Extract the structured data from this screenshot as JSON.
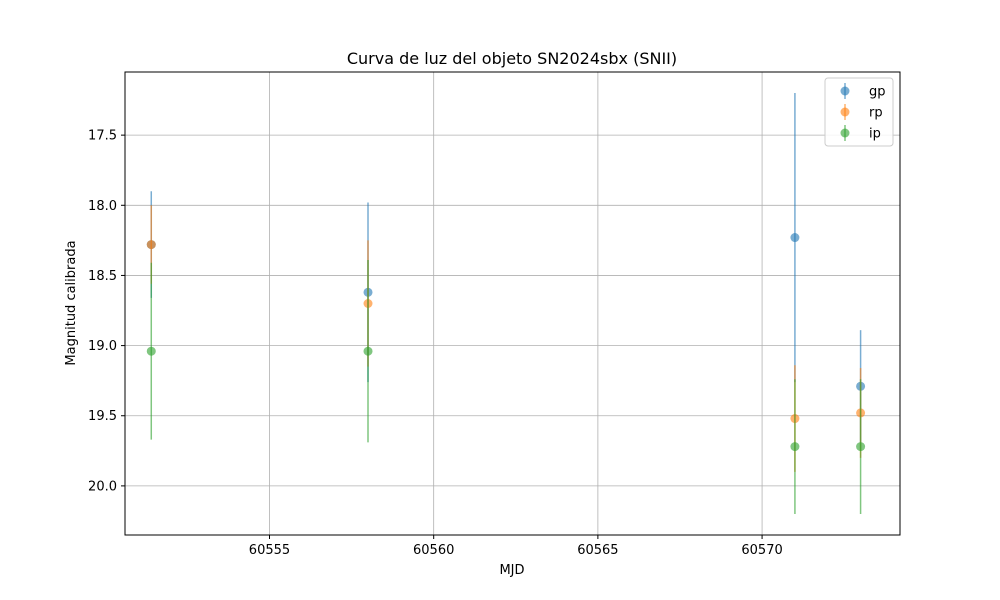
{
  "chart_data": {
    "type": "scatter",
    "title": "Curva de luz del objeto SN2024sbx (SNII)",
    "xlabel": "MJD",
    "ylabel": "Magnitud calibrada",
    "xlim": [
      60550.6,
      60574.2
    ],
    "ylim": [
      20.35,
      17.05
    ],
    "y_inverted": true,
    "grid": true,
    "legend_position": "top-right",
    "x_ticks": [
      60555,
      60560,
      60565,
      60570
    ],
    "x_tick_labels": [
      "60555",
      "60560",
      "60565",
      "60570"
    ],
    "y_ticks": [
      17.5,
      18.0,
      18.5,
      19.0,
      19.5,
      20.0
    ],
    "y_tick_labels": [
      "17.5",
      "18.0",
      "18.5",
      "19.0",
      "19.5",
      "20.0"
    ],
    "series": [
      {
        "name": "gp",
        "color": "#1f77b4",
        "points": [
          {
            "x": 60551.4,
            "y": 18.28,
            "err": 0.38
          },
          {
            "x": 60558.0,
            "y": 18.62,
            "err": 0.64
          },
          {
            "x": 60571.0,
            "y": 18.23,
            "err": 1.03
          },
          {
            "x": 60573.0,
            "y": 19.29,
            "err": 0.4
          }
        ]
      },
      {
        "name": "rp",
        "color": "#ff7f0e",
        "points": [
          {
            "x": 60551.4,
            "y": 18.28,
            "err": 0.28
          },
          {
            "x": 60558.0,
            "y": 18.7,
            "err": 0.45
          },
          {
            "x": 60571.0,
            "y": 19.52,
            "err": 0.38
          },
          {
            "x": 60573.0,
            "y": 19.48,
            "err": 0.32
          }
        ]
      },
      {
        "name": "ip",
        "color": "#2ca02c",
        "points": [
          {
            "x": 60551.4,
            "y": 19.04,
            "err": 0.63
          },
          {
            "x": 60558.0,
            "y": 19.04,
            "err": 0.65
          },
          {
            "x": 60571.0,
            "y": 19.72,
            "err": 0.48
          },
          {
            "x": 60573.0,
            "y": 19.72,
            "err": 0.48
          }
        ]
      }
    ]
  }
}
